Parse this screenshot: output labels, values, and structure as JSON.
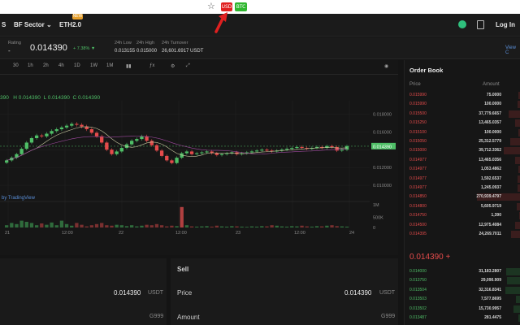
{
  "browser": {
    "ext1_label": "USD",
    "ext2_label": "BTC"
  },
  "nav": {
    "item0": "S",
    "sector": "BF Sector",
    "eth": "ETH2.0",
    "new_badge": "NEW",
    "login": "Log In"
  },
  "ticker": {
    "rating_label": "Rating",
    "rating_value": "-",
    "price": "0.014390",
    "change": "+ 7.38% ▼",
    "low_label": "24h Low",
    "low_value": "0.013155",
    "high_label": "24h High",
    "high_value": "0.015000",
    "turnover_label": "24h Turnover",
    "turnover_value": "26,601.6917 USDT",
    "view": "View C"
  },
  "chart_toolbar": [
    "30",
    "1h",
    "2h",
    "4h",
    "1D",
    "1W",
    "1M"
  ],
  "ohlc": {
    "h": "H 0.014390",
    "l": "L 0.014390",
    "c": "C 0.014390",
    "o": "390"
  },
  "attribution": "by TradingView",
  "chart_data": {
    "type": "line",
    "price_ticks": [
      "0.018000",
      "0.016000",
      "0.014390",
      "0.012000",
      "0.010000"
    ],
    "volume_ticks": [
      "1M",
      "500K",
      "0"
    ],
    "x_ticks": [
      "21",
      "12:00",
      "22",
      "12:00",
      "23",
      "12:00",
      "24"
    ],
    "last_price_label": "0.014390",
    "ylim": [
      0.009,
      0.0195
    ],
    "price_path": [
      0.0128,
      0.0131,
      0.0135,
      0.0141,
      0.0148,
      0.0153,
      0.0156,
      0.0155,
      0.0158,
      0.0161,
      0.0163,
      0.0165,
      0.0167,
      0.0169,
      0.0168,
      0.0166,
      0.0163,
      0.0159,
      0.0155,
      0.0148,
      0.014,
      0.0135,
      0.0138,
      0.0142,
      0.0146,
      0.015,
      0.0152,
      0.0155,
      0.015,
      0.0145,
      0.0139,
      0.0133,
      0.0128,
      0.0125,
      0.0131,
      0.0136,
      0.0138,
      0.0135,
      0.0136,
      0.0137,
      0.0138,
      0.0136,
      0.0134,
      0.0135,
      0.0136,
      0.0137,
      0.0135,
      0.0136,
      0.0137,
      0.0138,
      0.0139,
      0.014,
      0.0139,
      0.0138,
      0.0139,
      0.014,
      0.0141,
      0.0142,
      0.0143,
      0.0142,
      0.0141,
      0.0142,
      0.0143,
      0.0142,
      0.0144,
      0.0143,
      0.0139,
      0.014,
      0.0144
    ],
    "volume": [
      0.1,
      0.2,
      0.15,
      0.3,
      0.25,
      0.2,
      0.1,
      0.18,
      0.12,
      0.22,
      0.1,
      0.3,
      0.15,
      0.08,
      0.2,
      0.12,
      0.05,
      0.1,
      0.15,
      0.2,
      0.1,
      0.08,
      0.12,
      0.1,
      0.06,
      0.1,
      0.05,
      0.08,
      0.12,
      0.1,
      0.15,
      0.1,
      0.05,
      0.08,
      0.06,
      0.9,
      0.1,
      0.05,
      0.04,
      0.05,
      0.06,
      0.04,
      0.08,
      0.05,
      0.04,
      0.06,
      0.05,
      0.04,
      0.03,
      0.05,
      0.04,
      0.06,
      0.05,
      0.1,
      0.08,
      0.05,
      0.04,
      0.06,
      0.05,
      0.08,
      0.05,
      0.04,
      0.06,
      0.05,
      0.08,
      0.1,
      0.06,
      0.05,
      0.04
    ]
  },
  "orderbook": {
    "title": "Order Book",
    "price_label": "Price",
    "amount_label": "Amount",
    "asks": [
      [
        "0.015990",
        "75.0000",
        0.05
      ],
      [
        "0.015990",
        "100.0000",
        0.07
      ],
      [
        "0.015500",
        "37,779.6657",
        0.25
      ],
      [
        "0.015250",
        "13,465.0357",
        0.12
      ],
      [
        "0.015100",
        "100.0000",
        0.05
      ],
      [
        "0.015050",
        "25,312.5779",
        0.22
      ],
      [
        "0.015000",
        "39,712.3362",
        0.35
      ],
      [
        "0.014977",
        "13,465.0356",
        0.12
      ],
      [
        "0.014977",
        "1,053.4862",
        0.05
      ],
      [
        "0.014977",
        "1,592.6537",
        0.06
      ],
      [
        "0.014977",
        "1,245.0937",
        0.06
      ],
      [
        "0.014850",
        "270,939.4797",
        0.9
      ],
      [
        "0.014800",
        "5,605.9719",
        0.08
      ],
      [
        "0.014750",
        "1,390",
        0.04
      ],
      [
        "0.014500",
        "12,975.4084",
        0.12
      ],
      [
        "0.014395",
        "24,269.7011",
        0.2
      ]
    ],
    "last": "0.014390 +",
    "bids": [
      [
        "0.014000",
        "31,183.2807",
        0.3
      ],
      [
        "0.013750",
        "29,090.909",
        0.28
      ],
      [
        "0.013504",
        "32,316.8341",
        0.32
      ],
      [
        "0.013503",
        "7,577.8695",
        0.1
      ],
      [
        "0.013502",
        "15,730.9957",
        0.15
      ],
      [
        "0.013487",
        "281.4475",
        0.05
      ]
    ]
  },
  "buy": {
    "price_value": "0.014390",
    "unit": "USDT",
    "amount_unit": "G999"
  },
  "sell": {
    "title": "Sell",
    "price_label": "Price",
    "price_value": "0.014390",
    "unit": "USDT",
    "amount_label": "Amount",
    "amount_unit": "G999"
  }
}
